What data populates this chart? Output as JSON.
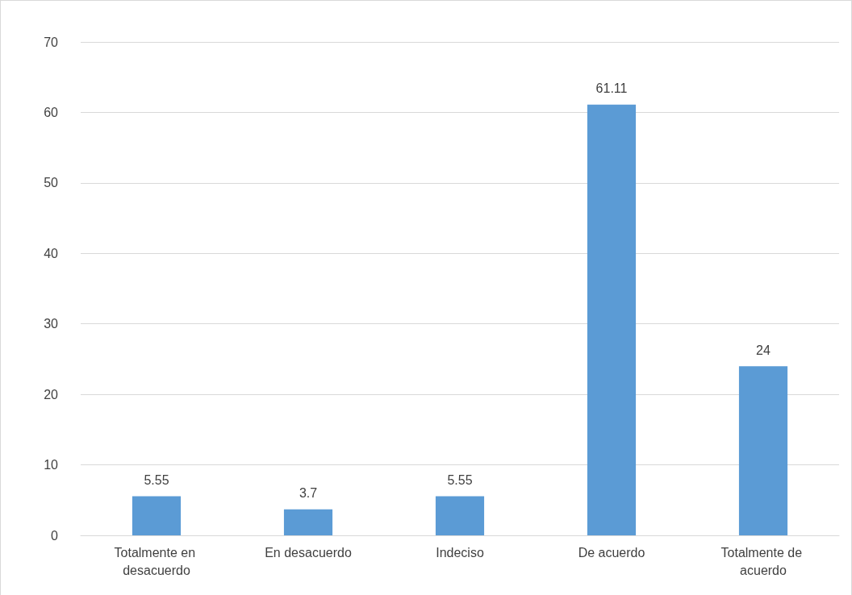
{
  "chart_data": {
    "type": "bar",
    "categories": [
      "Totalmente en desacuerdo",
      "En desacuerdo",
      "Indeciso",
      "De acuerdo",
      "Totalmente de acuerdo"
    ],
    "values": [
      5.55,
      3.7,
      5.55,
      61.11,
      24
    ],
    "color": "#5b9bd5",
    "ylim": [
      0,
      70
    ],
    "yticks": [
      0,
      10,
      20,
      30,
      40,
      50,
      60,
      70
    ],
    "grid": "y",
    "data_labels": true
  }
}
